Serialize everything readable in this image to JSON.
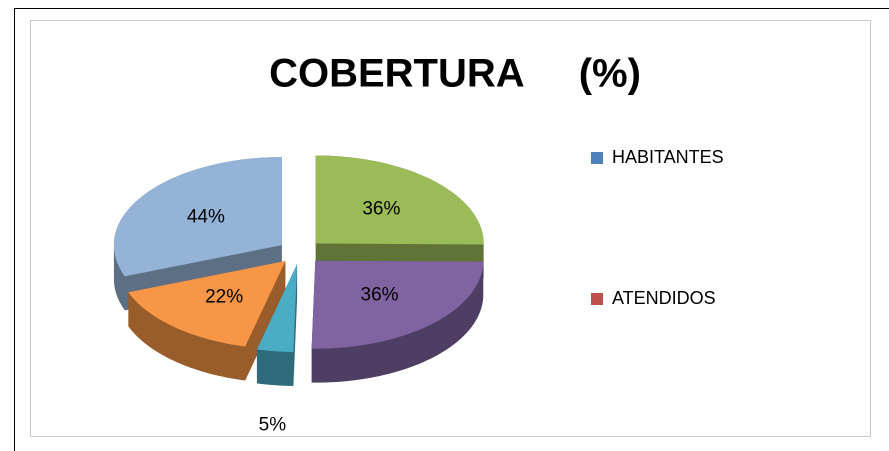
{
  "chart_data": {
    "type": "pie3d",
    "title": "COBERTURA     (%)",
    "values": [
      36,
      36,
      5,
      22,
      44
    ],
    "value_labels": [
      "36%",
      "36%",
      "5%",
      "22%",
      "44%"
    ],
    "colors": [
      "#9bbb59",
      "#8064a2",
      "#4bacc6",
      "#f79646",
      "#95b3d7"
    ],
    "legend": [
      {
        "name": "HABITANTES",
        "color": "#4f81bd"
      },
      {
        "name": "ATENDIDOS",
        "color": "#c0504d"
      }
    ]
  }
}
